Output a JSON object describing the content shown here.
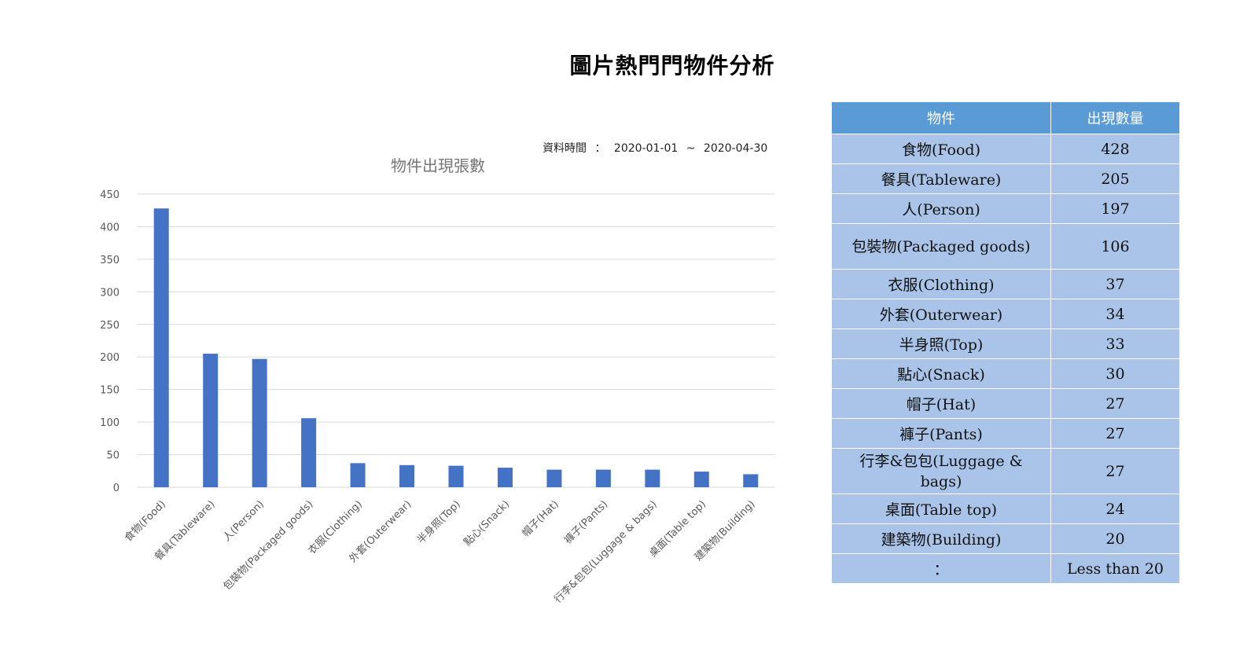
{
  "page": {
    "title": "圖片熱門門物件分析",
    "date_label": "資料時間",
    "date_sep": "：",
    "date_start": "2020-01-01",
    "date_tilde": "~",
    "date_end": "2020-04-30"
  },
  "chart_data": {
    "type": "bar",
    "title": "物件出現張數",
    "xlabel": "",
    "ylabel": "",
    "ylim": [
      0,
      450
    ],
    "yticks": [
      "0",
      "50",
      "100",
      "150",
      "200",
      "250",
      "300",
      "350",
      "400",
      "450"
    ],
    "categories": [
      "食物(Food)",
      "餐具(Tableware)",
      "人(Person)",
      "包裝物(Packaged   goods)",
      "衣服(Clothing)",
      "外套(Outerwear)",
      "半身照(Top)",
      "點心(Snack)",
      "帽子(Hat)",
      "褲子(Pants)",
      "行李&包包(Luggage  & bags)",
      "桌面(Table   top)",
      "建築物(Building)"
    ],
    "values": [
      428,
      205,
      197,
      106,
      37,
      34,
      33,
      30,
      27,
      27,
      27,
      24,
      20
    ],
    "colors": {
      "bar": "#4472c4",
      "grid": "#d9d9d9",
      "axis_text": "#595959"
    }
  },
  "table": {
    "headers": [
      "物件",
      "出現數量"
    ],
    "rows": [
      {
        "name": "食物(Food)",
        "count": "428"
      },
      {
        "name": "餐具(Tableware)",
        "count": "205"
      },
      {
        "name": "人(Person)",
        "count": "197"
      },
      {
        "name": "包裝物(Packaged goods)",
        "count": "106"
      },
      {
        "name": "衣服(Clothing)",
        "count": "37"
      },
      {
        "name": "外套(Outerwear)",
        "count": "34"
      },
      {
        "name": "半身照(Top)",
        "count": "33"
      },
      {
        "name": "點心(Snack)",
        "count": "30"
      },
      {
        "name": "帽子(Hat)",
        "count": "27"
      },
      {
        "name": "褲子(Pants)",
        "count": "27"
      },
      {
        "name": "行李&包包(Luggage & bags)",
        "count": "27"
      },
      {
        "name": "桌面(Table top)",
        "count": "24"
      },
      {
        "name": "建築物(Building)",
        "count": "20"
      },
      {
        "name": "：",
        "count": "Less than 20"
      }
    ]
  }
}
